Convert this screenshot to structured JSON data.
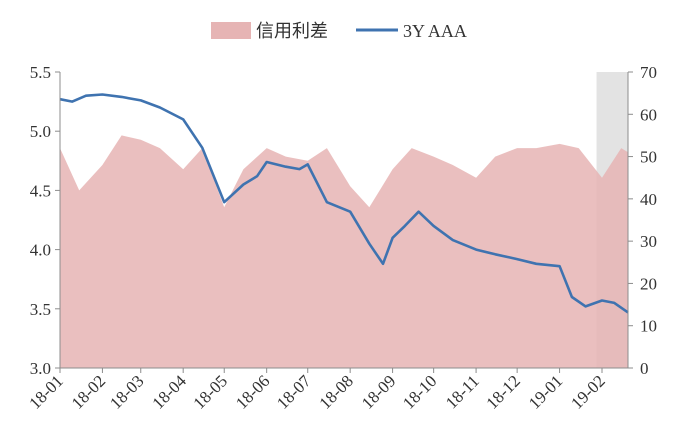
{
  "chart_data": {
    "type": "area+line",
    "title": "",
    "legend": {
      "placement": "top-center",
      "items": [
        {
          "label": "信用利差",
          "kind": "area",
          "color": "#e6b4b4"
        },
        {
          "label": "3Y AAA",
          "kind": "line",
          "color": "#3f73b0"
        }
      ]
    },
    "x_ticks": [
      "18-01",
      "18-02",
      "18-03",
      "18-04",
      "18-05",
      "18-06",
      "18-07",
      "18-08",
      "18-09",
      "18-10",
      "18-11",
      "18-12",
      "19-01",
      "19-02"
    ],
    "left_axis": {
      "ylim": [
        3.0,
        5.5
      ],
      "ticks": [
        "3.0",
        "3.5",
        "4.0",
        "4.5",
        "5.0",
        "5.5"
      ]
    },
    "right_axis": {
      "ylim": [
        0,
        70
      ],
      "ticks": [
        "0",
        "10",
        "20",
        "30",
        "40",
        "50",
        "60",
        "70"
      ]
    },
    "highlight_band": {
      "from": "19-01-28",
      "to": "19-02-20",
      "color": "#e3e3e3"
    },
    "series": [
      {
        "name": "信用利差",
        "axis": "right",
        "color": "#e6b4b4",
        "x": [
          "18-01-01",
          "18-01-15",
          "18-02-01",
          "18-02-15",
          "18-03-01",
          "18-03-15",
          "18-04-01",
          "18-04-15",
          "18-05-01",
          "18-05-15",
          "18-06-01",
          "18-06-15",
          "18-07-01",
          "18-07-15",
          "18-08-01",
          "18-08-15",
          "18-09-01",
          "18-09-15",
          "18-10-01",
          "18-10-15",
          "18-11-01",
          "18-11-15",
          "18-12-01",
          "18-12-15",
          "19-01-01",
          "19-01-15",
          "19-02-01",
          "19-02-15",
          "19-02-20"
        ],
        "values": [
          52,
          42,
          48,
          55,
          54,
          52,
          47,
          52,
          38,
          47,
          52,
          50,
          49,
          52,
          43,
          38,
          47,
          52,
          50,
          48,
          45,
          50,
          52,
          52,
          53,
          52,
          45,
          52,
          51
        ]
      },
      {
        "name": "3Y AAA",
        "axis": "left",
        "color": "#3f73b0",
        "x": [
          "18-01-01",
          "18-01-10",
          "18-01-20",
          "18-02-01",
          "18-02-15",
          "18-03-01",
          "18-03-15",
          "18-04-01",
          "18-04-15",
          "18-05-01",
          "18-05-15",
          "18-05-25",
          "18-06-01",
          "18-06-15",
          "18-06-25",
          "18-07-01",
          "18-07-15",
          "18-08-01",
          "18-08-15",
          "18-08-25",
          "18-09-01",
          "18-09-10",
          "18-09-20",
          "18-10-01",
          "18-10-15",
          "18-11-01",
          "18-11-15",
          "18-12-01",
          "18-12-15",
          "19-01-01",
          "19-01-10",
          "19-01-20",
          "19-02-01",
          "19-02-10",
          "19-02-20"
        ],
        "values": [
          5.27,
          5.25,
          5.3,
          5.31,
          5.29,
          5.26,
          5.2,
          5.1,
          4.86,
          4.4,
          4.55,
          4.62,
          4.74,
          4.7,
          4.68,
          4.72,
          4.4,
          4.32,
          4.05,
          3.88,
          4.1,
          4.2,
          4.32,
          4.2,
          4.08,
          4.0,
          3.96,
          3.92,
          3.88,
          3.86,
          3.6,
          3.52,
          3.57,
          3.55,
          3.47
        ]
      }
    ]
  }
}
